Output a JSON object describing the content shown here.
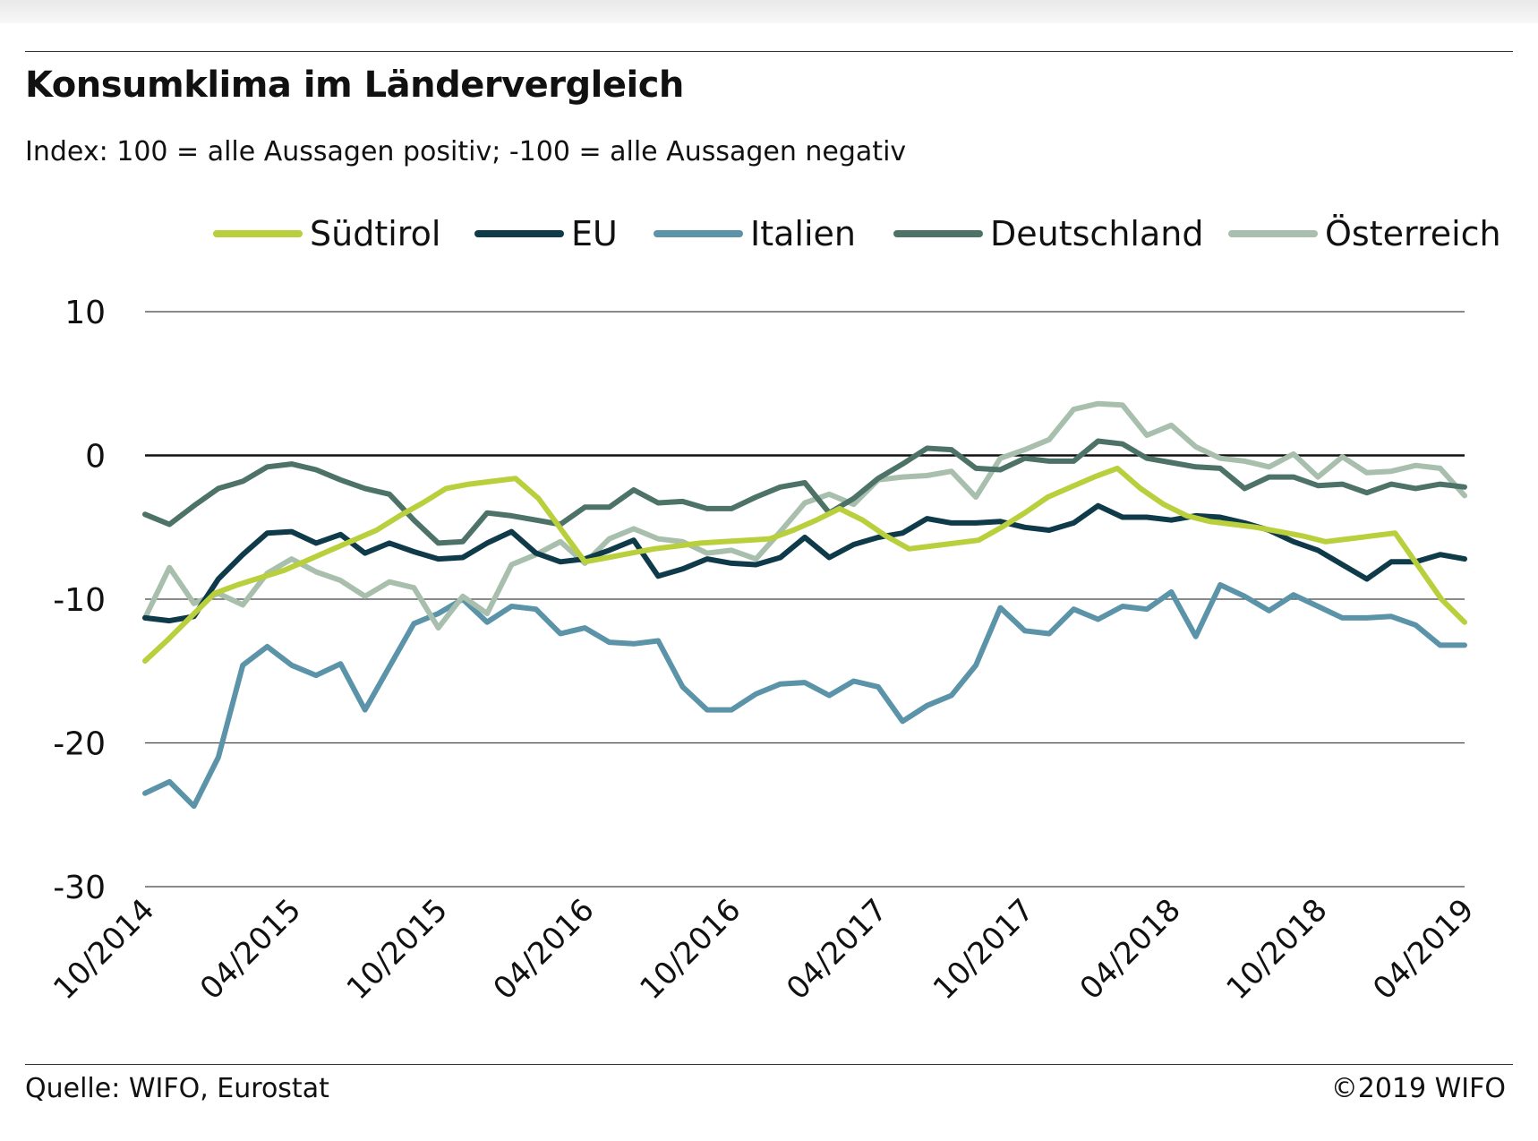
{
  "header": {
    "title": "Konsumklima im Ländervergleich",
    "subtitle": "Index: 100 = alle Aussagen positiv; -100 =  alle Aussagen negativ"
  },
  "footer": {
    "source": "Quelle: WIFO, Eurostat",
    "copyright": "©2019 WIFO"
  },
  "chart_data": {
    "type": "line",
    "title": "Konsumklima im Ländervergleich",
    "subtitle": "Index: 100 = alle Aussagen positiv; -100 =  alle Aussagen negativ",
    "xlabel": "",
    "ylabel": "",
    "ylim": [
      -30,
      10
    ],
    "yticks": [
      10,
      0,
      -10,
      -20,
      -30
    ],
    "ytick_labels": [
      "10",
      "0",
      "-10",
      "-20",
      "-30"
    ],
    "grid": true,
    "zero_line": true,
    "legend_position": "top",
    "x_start": "10/2014",
    "x_end": "04/2019",
    "x_tick_labels": [
      "10/2014",
      "04/2015",
      "10/2015",
      "04/2016",
      "10/2016",
      "04/2017",
      "10/2017",
      "04/2018",
      "10/2018",
      "04/2019"
    ],
    "series": [
      {
        "name": "Südtirol",
        "color": "#b9cf3b",
        "values": [
          -14.3,
          -12.8,
          -11.2,
          -9.6,
          -9.0,
          -8.5,
          -8.0,
          -7.3,
          -6.6,
          -5.9,
          -5.2,
          -4.2,
          -3.3,
          -2.3,
          -2.0,
          -1.8,
          -1.6,
          -3.0,
          -5.2,
          -7.4,
          -7.1,
          -6.8,
          -6.5,
          -6.3,
          -6.1,
          -6.0,
          -5.9,
          -5.8,
          -5.2,
          -4.5,
          -3.7,
          -4.5,
          -5.6,
          -6.5,
          -6.3,
          -6.1,
          -5.9,
          -5.0,
          -4.0,
          -2.9,
          -2.2,
          -1.5,
          -0.9,
          -2.3,
          -3.4,
          -4.2,
          -4.6,
          -4.8,
          -5.0,
          -5.3,
          -5.6,
          -6.0,
          -5.8,
          -5.6,
          -5.4,
          -7.7,
          -10.0,
          -11.6
        ]
      },
      {
        "name": "EU",
        "color": "#0e3a4a",
        "values": [
          -11.3,
          -11.5,
          -11.2,
          -8.6,
          -6.9,
          -5.4,
          -5.3,
          -6.1,
          -5.5,
          -6.8,
          -6.1,
          -6.7,
          -7.2,
          -7.1,
          -6.1,
          -5.3,
          -6.8,
          -7.4,
          -7.2,
          -6.6,
          -5.9,
          -8.4,
          -7.9,
          -7.2,
          -7.5,
          -7.6,
          -7.1,
          -5.7,
          -7.1,
          -6.2,
          -5.7,
          -5.4,
          -4.4,
          -4.7,
          -4.7,
          -4.6,
          -5.0,
          -5.2,
          -4.7,
          -3.5,
          -4.3,
          -4.3,
          -4.5,
          -4.2,
          -4.3,
          -4.7,
          -5.2,
          -6.0,
          -6.6,
          -7.6,
          -8.6,
          -7.4,
          -7.4,
          -6.9,
          -7.2
        ]
      },
      {
        "name": "Italien",
        "color": "#5b93a8",
        "values": [
          -23.5,
          -22.7,
          -24.4,
          -21.0,
          -14.6,
          -13.3,
          -14.6,
          -15.3,
          -14.5,
          -17.7,
          -14.7,
          -11.7,
          -11.0,
          -10.0,
          -11.6,
          -10.5,
          -10.7,
          -12.4,
          -12.0,
          -13.0,
          -13.1,
          -12.9,
          -16.1,
          -17.7,
          -17.7,
          -16.6,
          -15.9,
          -15.8,
          -16.7,
          -15.7,
          -16.1,
          -18.5,
          -17.4,
          -16.7,
          -14.6,
          -10.6,
          -12.2,
          -12.4,
          -10.7,
          -11.4,
          -10.5,
          -10.7,
          -9.5,
          -12.6,
          -9.0,
          -9.8,
          -10.8,
          -9.7,
          -10.5,
          -11.3,
          -11.3,
          -11.2,
          -11.8,
          -13.2,
          -13.2
        ]
      },
      {
        "name": "Deutschland",
        "color": "#4d7268",
        "values": [
          -4.1,
          -4.8,
          -3.5,
          -2.3,
          -1.8,
          -0.8,
          -0.6,
          -1.0,
          -1.7,
          -2.3,
          -2.7,
          -4.5,
          -6.1,
          -6.0,
          -4.0,
          -4.2,
          -4.5,
          -4.8,
          -3.6,
          -3.6,
          -2.4,
          -3.3,
          -3.2,
          -3.7,
          -3.7,
          -2.9,
          -2.2,
          -1.9,
          -4.0,
          -3.0,
          -1.6,
          -0.6,
          0.5,
          0.4,
          -0.9,
          -1.0,
          -0.2,
          -0.4,
          -0.4,
          1.0,
          0.8,
          -0.2,
          -0.5,
          -0.8,
          -0.9,
          -2.3,
          -1.5,
          -1.5,
          -2.1,
          -2.0,
          -2.6,
          -2.0,
          -2.3,
          -2.0,
          -2.2
        ]
      },
      {
        "name": "Österreich",
        "color": "#a9bfad",
        "values": [
          -11.3,
          -7.8,
          -10.3,
          -9.6,
          -10.4,
          -8.2,
          -7.2,
          -8.1,
          -8.7,
          -9.8,
          -8.8,
          -9.2,
          -12.0,
          -9.8,
          -11.0,
          -7.6,
          -6.9,
          -6.0,
          -7.5,
          -5.8,
          -5.1,
          -5.8,
          -6.0,
          -6.8,
          -6.6,
          -7.2,
          -5.3,
          -3.3,
          -2.7,
          -3.4,
          -1.7,
          -1.5,
          -1.4,
          -1.1,
          -2.9,
          -0.2,
          0.4,
          1.1,
          3.2,
          3.6,
          3.5,
          1.4,
          2.1,
          0.6,
          -0.2,
          -0.4,
          -0.8,
          0.1,
          -1.5,
          -0.1,
          -1.2,
          -1.1,
          -0.7,
          -0.9,
          -2.8
        ]
      }
    ]
  }
}
